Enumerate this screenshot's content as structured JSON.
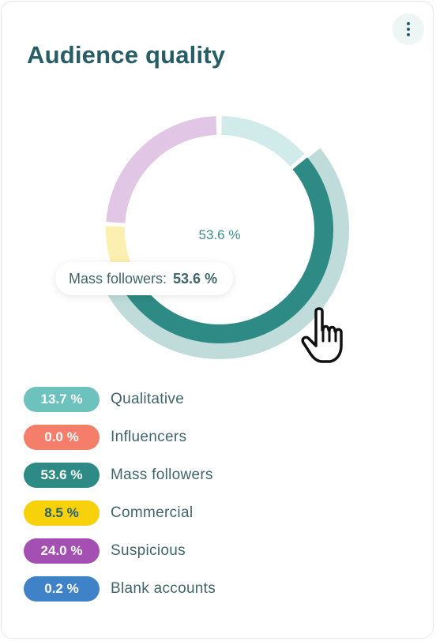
{
  "card": {
    "title": "Audience quality",
    "menu_icon": "more-vertical-icon"
  },
  "chart_data": {
    "type": "pie",
    "title": "Audience quality",
    "slices": [
      {
        "label": "Qualitative",
        "value": 13.7,
        "value_label": "13.7 %",
        "color": "#6dc2bd",
        "text_color": "#ffffff"
      },
      {
        "label": "Influencers",
        "value": 0.0,
        "value_label": "0.0 %",
        "color": "#f57e6a",
        "text_color": "#ffffff"
      },
      {
        "label": "Mass followers",
        "value": 53.6,
        "value_label": "53.6 %",
        "color": "#2e8a84",
        "text_color": "#ffffff"
      },
      {
        "label": "Commercial",
        "value": 8.5,
        "value_label": "8.5 %",
        "color": "#f7d10a",
        "text_color": "#275e66"
      },
      {
        "label": "Suspicious",
        "value": 24.0,
        "value_label": "24.0 %",
        "color": "#a44fb2",
        "text_color": "#ffffff"
      },
      {
        "label": "Blank accounts",
        "value": 0.2,
        "value_label": "0.2 %",
        "color": "#3f82c8",
        "text_color": "#ffffff"
      }
    ],
    "highlighted": "Mass followers",
    "center_label": "53.6 %",
    "legend_position": "bottom"
  },
  "tooltip": {
    "label": "Mass followers:",
    "value": "53.6 %"
  },
  "cursor": {
    "icon": "hand-pointer-icon"
  }
}
